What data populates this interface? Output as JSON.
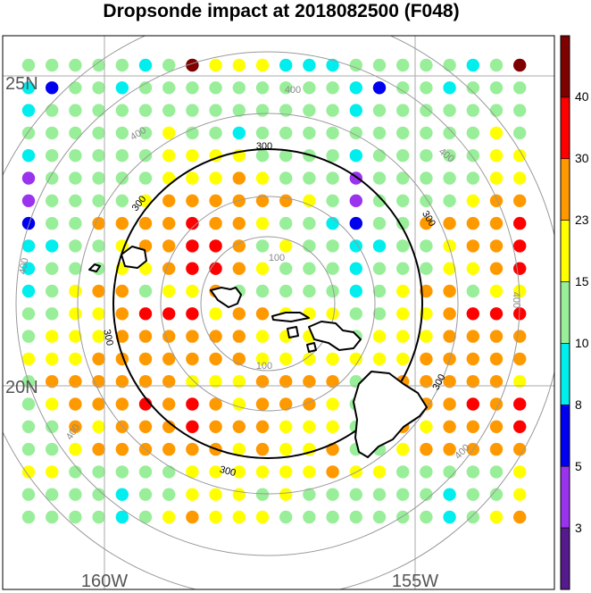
{
  "title": "Dropsonde impact at 2018082500 (F048)",
  "map": {
    "lat_labels": [
      "25N",
      "20N"
    ],
    "lon_labels": [
      "160W",
      "155W"
    ],
    "range_ring_labels": [
      "100",
      "100",
      "300",
      "300",
      "300",
      "300",
      "300",
      "300",
      "400",
      "400",
      "400",
      "400",
      "400",
      "400",
      "400"
    ]
  },
  "colorbar": {
    "tick_labels": [
      "40",
      "30",
      "23",
      "15",
      "10",
      "8",
      "5",
      "3"
    ],
    "colors": [
      "#7f0000",
      "#ff0000",
      "#ff9900",
      "#ffff00",
      "#99ee99",
      "#00eeee",
      "#0000ee",
      "#9933ee",
      "#551a8b"
    ]
  },
  "grid": {
    "rows": [
      "44444540333555",
      "56445444444444",
      "54444444444444",
      "44444434454444",
      "54444433334444",
      "74444433323444",
      "74444322222234",
      "64422221223445",
      "55443221124344",
      "54443321123444",
      "54322433244444",
      "44332111322333",
      "43332222223333",
      "33322222223333",
      "42222223332222",
      "43222121232223",
      "44232221222333",
      "44322222232332",
      "33444443333332",
      "44445443334344",
      "44445432333444"
    ]
  }
}
